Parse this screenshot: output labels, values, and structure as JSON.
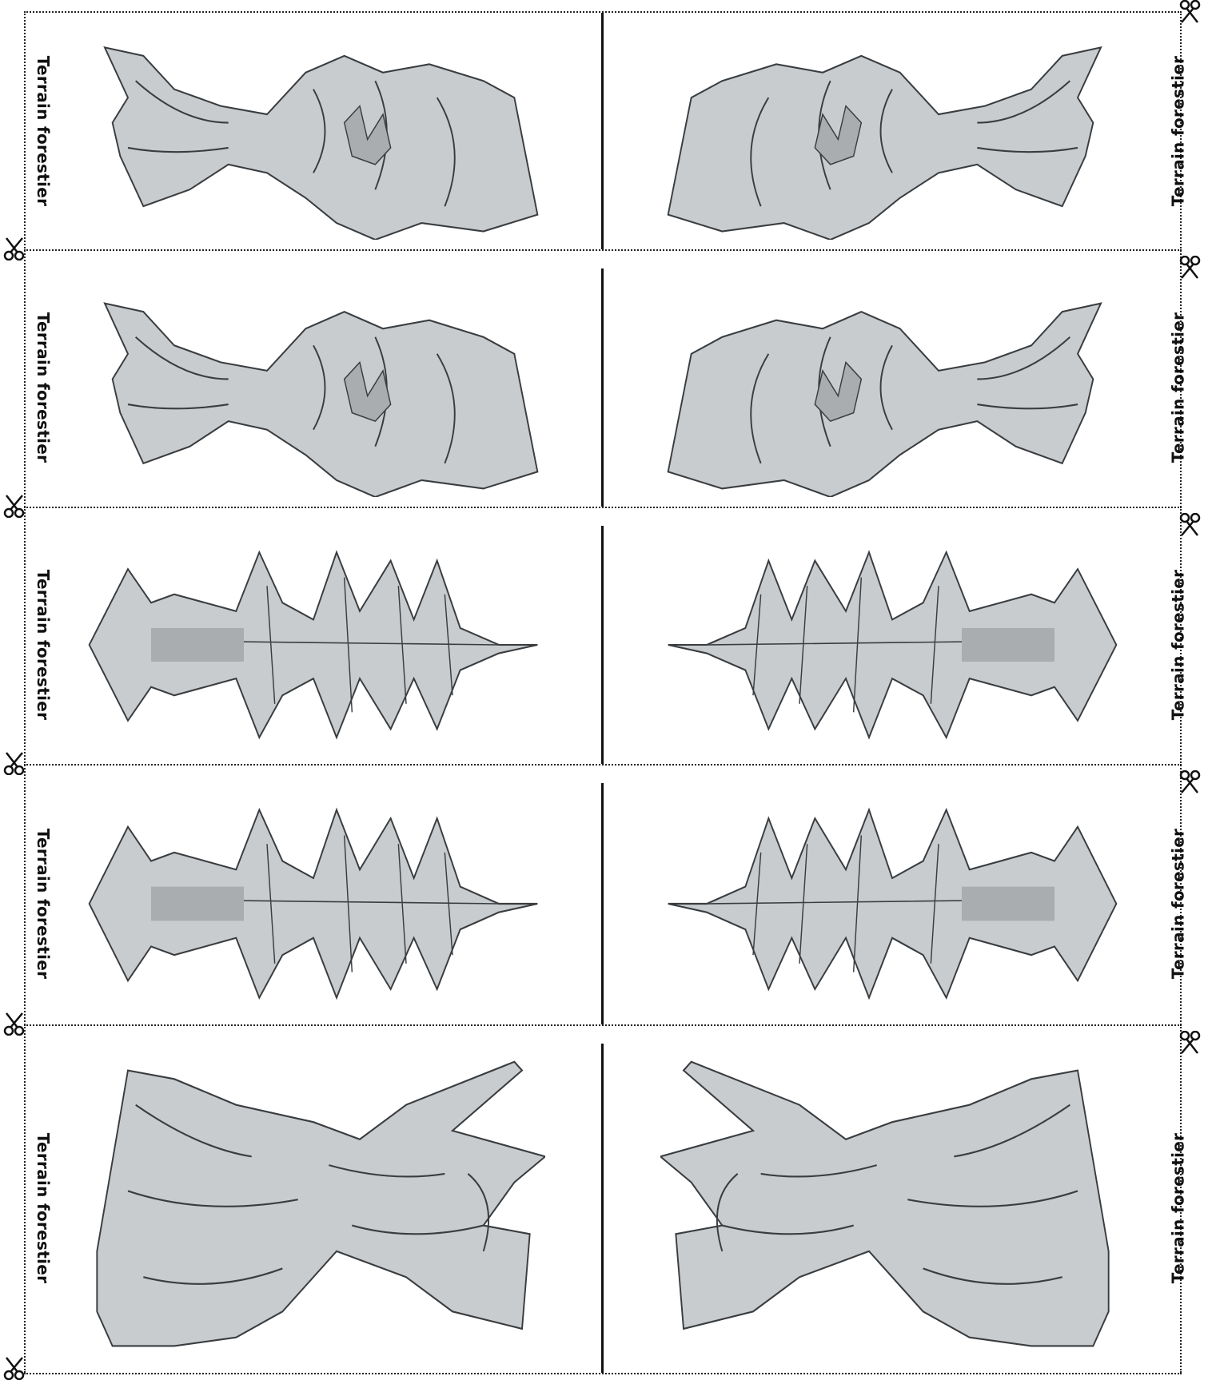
{
  "card_label": "Terrain forestier",
  "colors": {
    "fill": "#c9ccce",
    "fill_dark": "#a9adb0",
    "ink": "#3a3d40",
    "cut_line": "#222222"
  },
  "rows": [
    {
      "art": "broadleaf-tree-top-view"
    },
    {
      "art": "broadleaf-tree-top-view"
    },
    {
      "art": "conifer-tree-top-view"
    },
    {
      "art": "conifer-tree-top-view"
    },
    {
      "art": "fallen-trunk-top-view"
    }
  ],
  "icons": {
    "cut_marker": "scissors-icon"
  }
}
